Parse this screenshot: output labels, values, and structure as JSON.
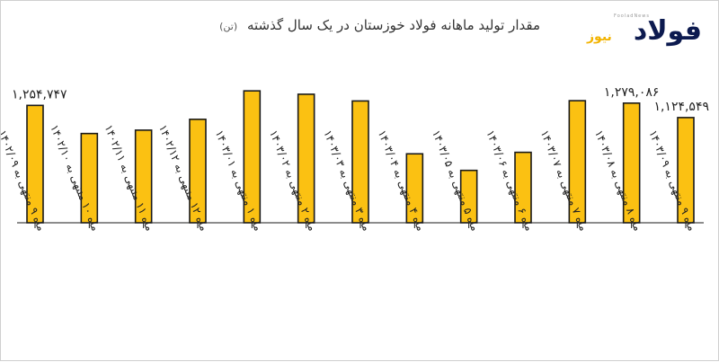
{
  "title": "مقدار تولید ماهانه فولاد خوزستان در یک سال گذشته",
  "title_unit": "(تن)",
  "logo": {
    "main": "فولاد",
    "sub": "نیوز",
    "tagline": "FooladNews"
  },
  "colors": {
    "bar": "#fbc112",
    "outline": "#1a1a1a",
    "logo_blue": "#0c1a4f",
    "logo_yellow": "#f2b300"
  },
  "chart_data": {
    "type": "bar",
    "title": "مقدار تولید ماهانه فولاد خوزستان در یک سال گذشته",
    "unit": "تن",
    "categories": [
      "ماه ۹ منتهی به ۱۴۰۲/۰۹",
      "ماه ۱۰ منتهی به ۱۴۰۲/۱۰",
      "ماه ۱۱ منتهی به ۱۴۰۲/۱۱",
      "ماه ۱۲ منتهی به ۱۴۰۲/۱۲",
      "ماه ۱ منتهی به ۱۴۰۳/۰۱",
      "ماه ۲ منتهی به ۱۴۰۳/۰۲",
      "ماه ۳ منتهی به ۱۴۰۳/۰۳",
      "ماه ۴ منتهی به ۱۴۰۳/۰۴",
      "ماه ۵ منتهی به ۱۴۰۳/۰۵",
      "ماه ۶ منتهی به ۱۴۰۳/۰۶",
      "ماه ۷ منتهی به ۱۴۰۳/۰۷",
      "ماه ۸ منتهی به ۱۴۰۳/۰۸",
      "ماه ۹ منتهی به ۱۴۰۳/۰۹"
    ],
    "values": [
      1254747,
      954000,
      990000,
      1106000,
      1410000,
      1374000,
      1302000,
      737000,
      560000,
      753000,
      1305000,
      1279086,
      1124549
    ],
    "data_labels": [
      "۱,۲۵۴,۷۴۷",
      "",
      "",
      "",
      "",
      "",
      "",
      "",
      "",
      "",
      "",
      "۱,۲۷۹,۰۸۶",
      "۱,۱۲۴,۵۴۹"
    ],
    "ylim": [
      0,
      1450000
    ],
    "grid": false,
    "legend": "none"
  }
}
